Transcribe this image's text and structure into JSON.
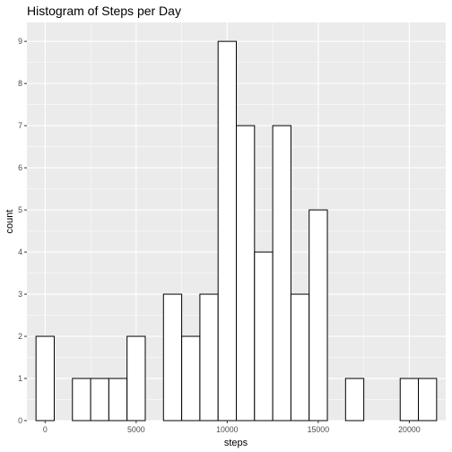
{
  "chart_data": {
    "type": "bar",
    "title": "Histogram of Steps per Day",
    "xlabel": "steps",
    "ylabel": "count",
    "bin_width": 1000,
    "bins": [
      {
        "x": 0,
        "count": 2
      },
      {
        "x": 1000,
        "count": 0
      },
      {
        "x": 2000,
        "count": 1
      },
      {
        "x": 3000,
        "count": 1
      },
      {
        "x": 4000,
        "count": 1
      },
      {
        "x": 5000,
        "count": 2
      },
      {
        "x": 6000,
        "count": 0
      },
      {
        "x": 7000,
        "count": 3
      },
      {
        "x": 8000,
        "count": 2
      },
      {
        "x": 9000,
        "count": 3
      },
      {
        "x": 10000,
        "count": 9
      },
      {
        "x": 11000,
        "count": 7
      },
      {
        "x": 12000,
        "count": 4
      },
      {
        "x": 13000,
        "count": 7
      },
      {
        "x": 14000,
        "count": 3
      },
      {
        "x": 15000,
        "count": 5
      },
      {
        "x": 16000,
        "count": 0
      },
      {
        "x": 17000,
        "count": 1
      },
      {
        "x": 18000,
        "count": 0
      },
      {
        "x": 19000,
        "count": 0
      },
      {
        "x": 20000,
        "count": 1
      },
      {
        "x": 21000,
        "count": 1
      }
    ],
    "xlim": [
      -1000,
      22000
    ],
    "ylim": [
      0,
      9.45
    ],
    "x_ticks": [
      0,
      5000,
      10000,
      15000,
      20000
    ],
    "x_tick_labels": [
      "0",
      "5000",
      "10000",
      "15000",
      "20000"
    ],
    "y_ticks": [
      0,
      1,
      2,
      3,
      4,
      5,
      6,
      7,
      8,
      9
    ],
    "y_tick_labels": [
      "0",
      "1",
      "2",
      "3",
      "4",
      "5",
      "6",
      "7",
      "8",
      "9"
    ],
    "grid": true,
    "colors": {
      "panel_background": "#ebebeb",
      "grid_major": "#ffffff",
      "bar_fill": "#ffffff",
      "bar_outline": "#000000"
    }
  }
}
